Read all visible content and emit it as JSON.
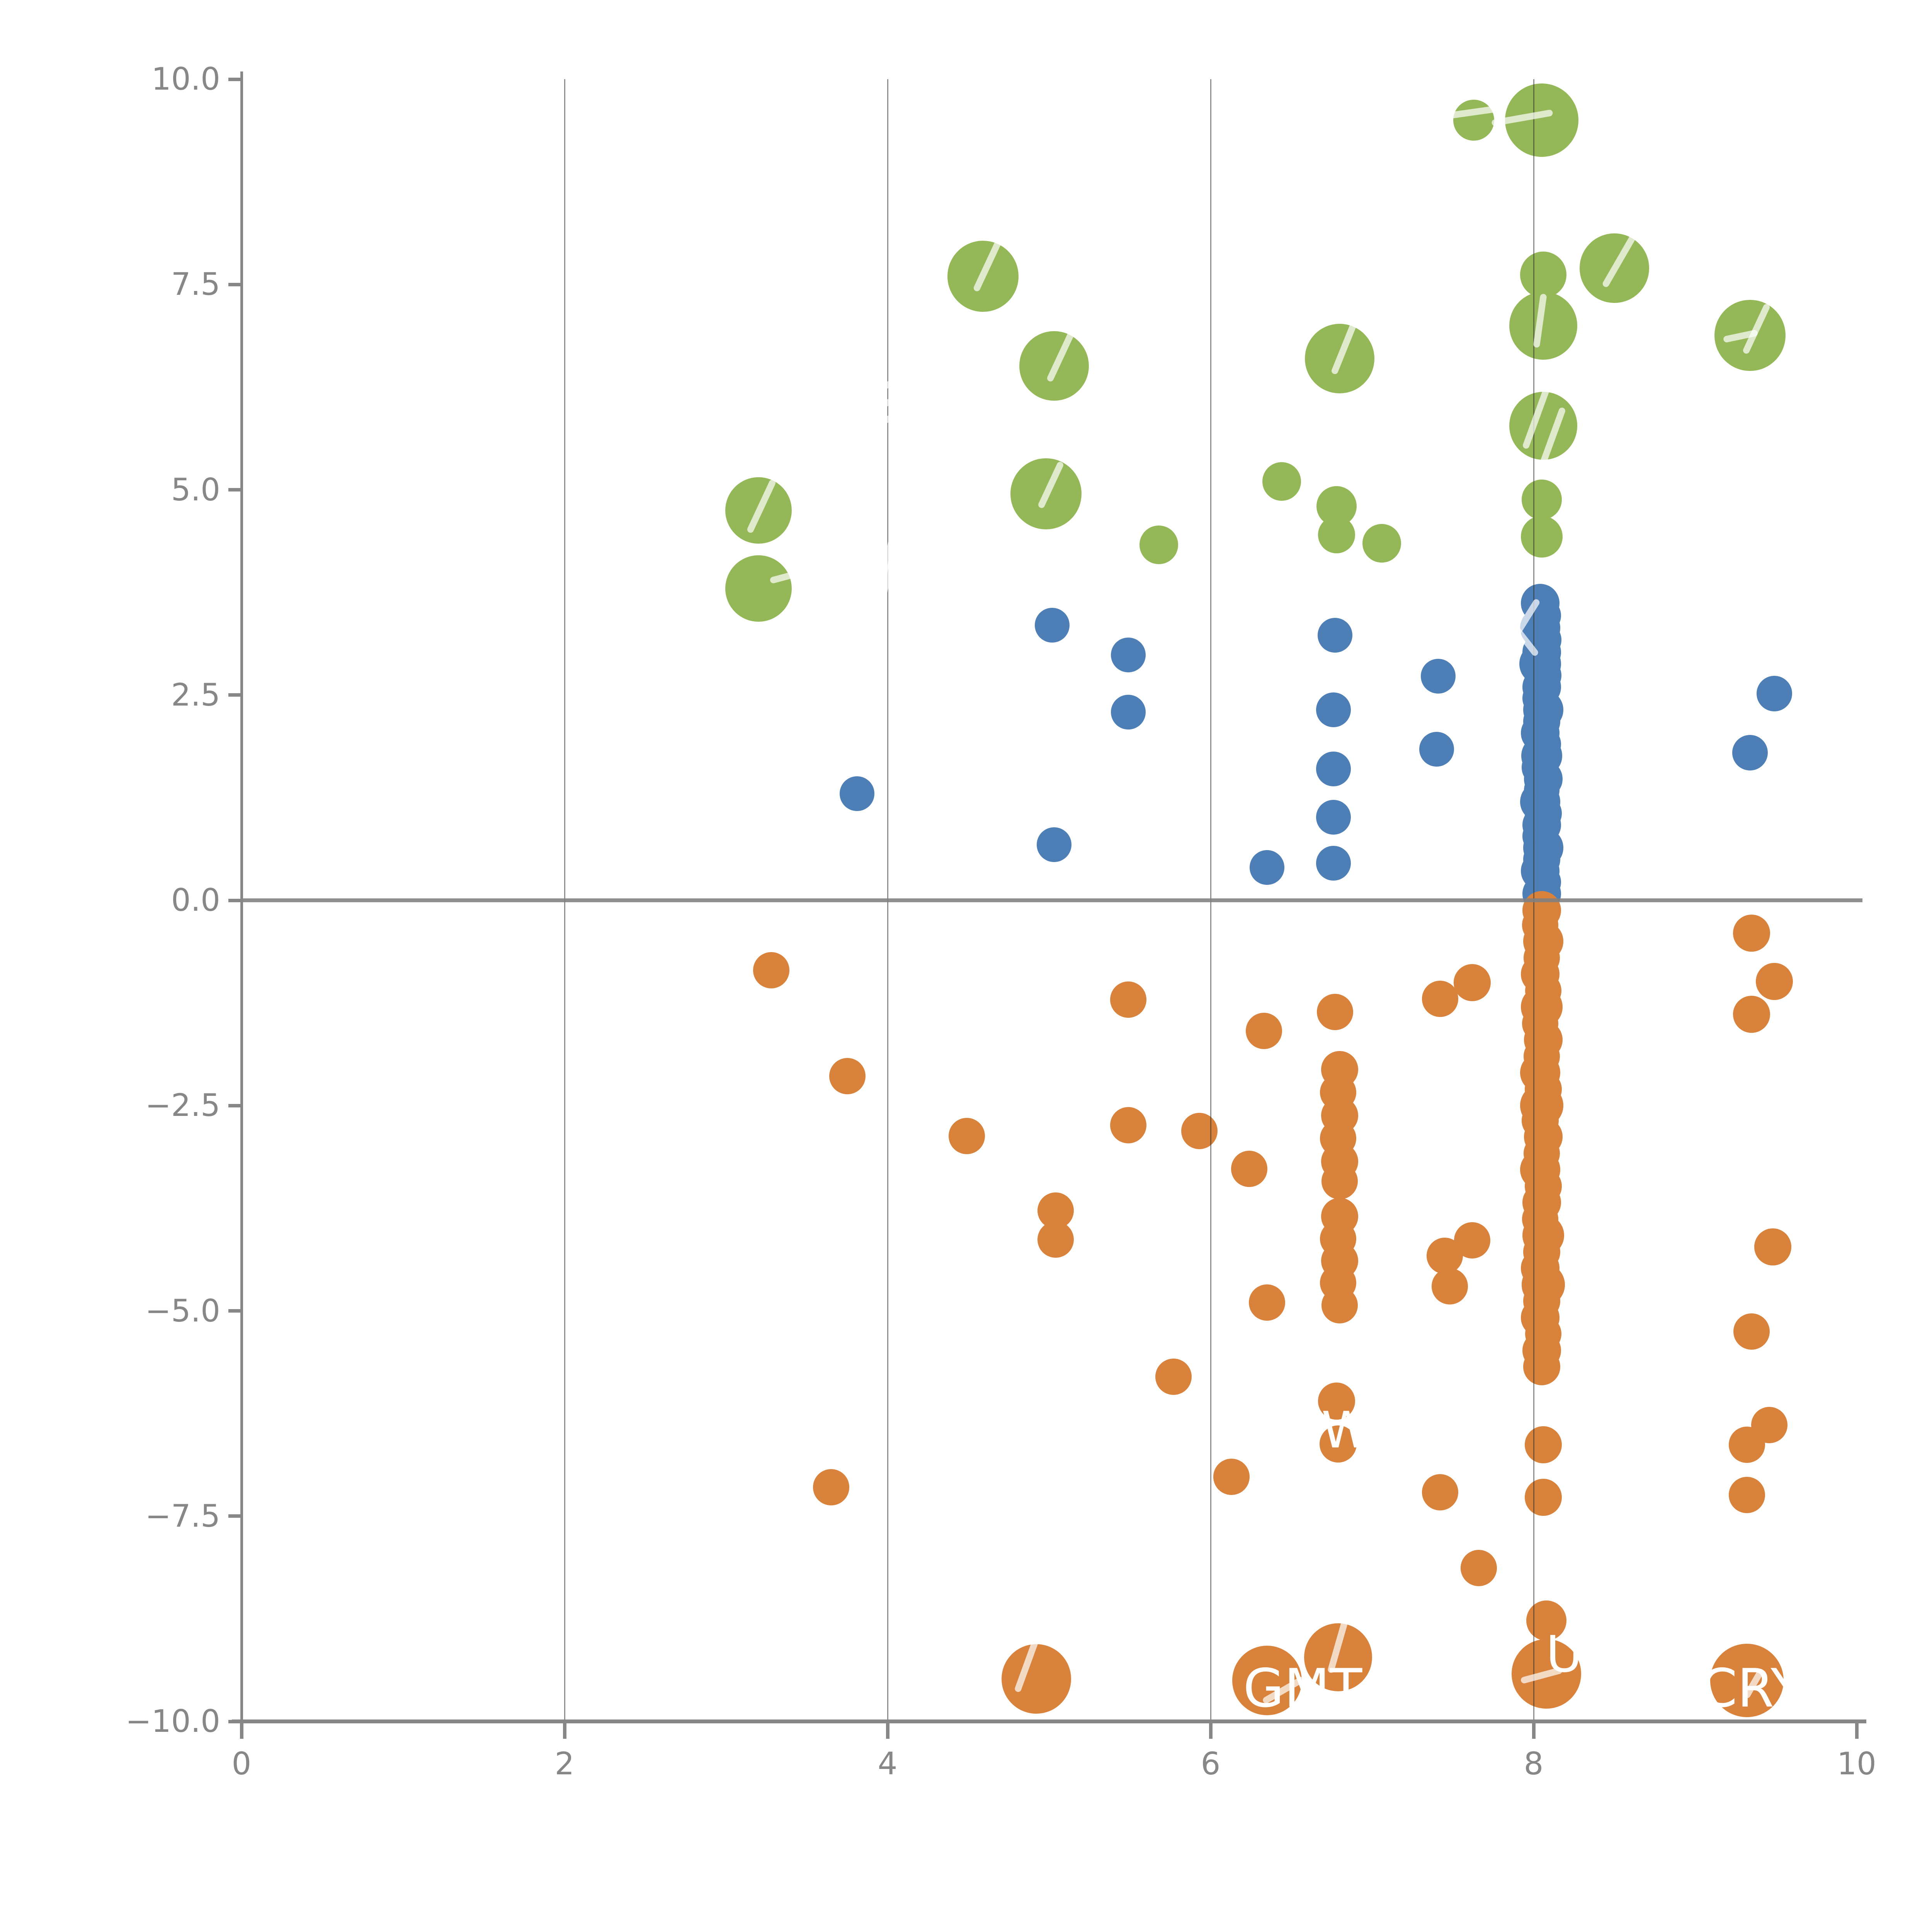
{
  "chart_data": {
    "type": "scatter",
    "title": "",
    "xlabel": "",
    "ylabel": "",
    "xlim": [
      0,
      10
    ],
    "ylim": [
      -10,
      10
    ],
    "grid": "vertical-only",
    "legend": "none",
    "x_ticks": [
      0,
      2,
      4,
      6,
      8,
      10
    ],
    "x_tick_labels": [
      "0",
      "2",
      "4",
      "6",
      "8",
      "10"
    ],
    "y_ticks": [
      10.0,
      7.5,
      5.0,
      2.5,
      0.0,
      -2.5,
      -5.0,
      -7.5,
      -10.0
    ],
    "y_tick_labels": [
      "10.0",
      "7.5",
      "5.0",
      "2.5",
      "0.0",
      "−2.5",
      "−5.0",
      "−7.5",
      "−10.0"
    ],
    "gridline_x": [
      2,
      4,
      6,
      8
    ],
    "zero_line_y": 0,
    "map": {
      "x0": 625,
      "xs": 418,
      "y0": 2330,
      "ys": 212.5,
      "plot_top": 205,
      "plot_bottom": 4450,
      "plot_left": 625,
      "plot_right": 4820
    },
    "colors": {
      "green": "#94b857",
      "blue": "#4d7eb5",
      "orange": "#d8823c",
      "axis": "#878787",
      "grid": "rgba(45,45,45,0.55)"
    },
    "series": [
      {
        "name": "green",
        "color": "#94b857",
        "points": [
          [
            3.2,
            4.75,
            86
          ],
          [
            3.2,
            3.8,
            86
          ],
          [
            4.59,
            7.6,
            92
          ],
          [
            5.03,
            6.51,
            90
          ],
          [
            4.98,
            4.95,
            92
          ],
          [
            5.68,
            4.33,
            50
          ],
          [
            6.44,
            5.1,
            50
          ],
          [
            6.8,
            6.6,
            90
          ],
          [
            6.78,
            4.8,
            52
          ],
          [
            6.78,
            4.45,
            48
          ],
          [
            7.06,
            4.35,
            50
          ],
          [
            7.63,
            9.5,
            53
          ],
          [
            8.05,
            9.5,
            95
          ],
          [
            8.06,
            7.62,
            60
          ],
          [
            8.06,
            7.0,
            88
          ],
          [
            8.5,
            7.7,
            90
          ],
          [
            8.06,
            5.78,
            88
          ],
          [
            8.05,
            4.88,
            52
          ],
          [
            8.05,
            4.43,
            54
          ],
          [
            9.34,
            6.88,
            92
          ]
        ]
      },
      {
        "name": "blue",
        "color": "#4d7eb5",
        "points": [
          [
            3.81,
            1.3,
            45
          ],
          [
            5.02,
            3.35,
            45
          ],
          [
            5.03,
            0.68,
            45
          ],
          [
            5.49,
            2.99,
            45
          ],
          [
            5.49,
            2.29,
            45
          ],
          [
            6.35,
            0.4,
            45
          ],
          [
            6.77,
            3.23,
            45
          ],
          [
            6.76,
            2.32,
            45
          ],
          [
            6.76,
            1.6,
            45
          ],
          [
            6.76,
            1.01,
            45
          ],
          [
            6.76,
            0.45,
            45
          ],
          [
            7.41,
            2.73,
            45
          ],
          [
            7.4,
            1.84,
            45
          ],
          [
            9.49,
            2.52,
            46
          ],
          [
            9.34,
            1.8,
            46
          ],
          [
            8.04,
            3.62,
            50
          ],
          [
            8.06,
            3.47,
            46
          ],
          [
            8.04,
            3.32,
            52
          ],
          [
            8.06,
            3.17,
            47
          ],
          [
            8.05,
            3.02,
            50
          ],
          [
            8.04,
            2.88,
            54
          ],
          [
            8.06,
            2.74,
            47
          ],
          [
            8.05,
            2.6,
            50
          ],
          [
            8.04,
            2.46,
            46
          ],
          [
            8.06,
            2.32,
            52
          ],
          [
            8.05,
            2.18,
            48
          ],
          [
            8.04,
            2.04,
            50
          ],
          [
            8.06,
            1.9,
            46
          ],
          [
            8.05,
            1.76,
            53
          ],
          [
            8.04,
            1.62,
            48
          ],
          [
            8.06,
            1.48,
            50
          ],
          [
            8.05,
            1.34,
            46
          ],
          [
            8.04,
            1.2,
            52
          ],
          [
            8.06,
            1.06,
            48
          ],
          [
            8.05,
            0.92,
            50
          ],
          [
            8.04,
            0.78,
            46
          ],
          [
            8.06,
            0.64,
            52
          ],
          [
            8.05,
            0.5,
            48
          ],
          [
            8.04,
            0.36,
            50
          ],
          [
            8.06,
            0.22,
            46
          ],
          [
            8.05,
            0.08,
            50
          ]
        ]
      },
      {
        "name": "orange",
        "color": "#d8823c",
        "points": [
          [
            3.28,
            -0.85,
            47
          ],
          [
            3.75,
            -2.14,
            47
          ],
          [
            3.65,
            -7.15,
            47
          ],
          [
            4.49,
            -2.87,
            47
          ],
          [
            5.04,
            -3.78,
            47
          ],
          [
            5.04,
            -4.13,
            47
          ],
          [
            5.49,
            -1.21,
            47
          ],
          [
            5.49,
            -2.74,
            47
          ],
          [
            5.93,
            -2.81,
            47
          ],
          [
            6.33,
            -1.59,
            47
          ],
          [
            6.77,
            -1.36,
            47
          ],
          [
            6.24,
            -3.27,
            47
          ],
          [
            6.35,
            -4.9,
            47
          ],
          [
            5.77,
            -5.8,
            47
          ],
          [
            6.13,
            -7.02,
            47
          ],
          [
            6.78,
            -6.1,
            48
          ],
          [
            6.79,
            -6.62,
            48
          ],
          [
            7.42,
            -7.21,
            47
          ],
          [
            7.66,
            -8.13,
            47
          ],
          [
            7.62,
            -1.0,
            48
          ],
          [
            7.42,
            -1.2,
            47
          ],
          [
            7.62,
            -4.14,
            47
          ],
          [
            7.45,
            -4.33,
            47
          ],
          [
            7.48,
            -4.7,
            47
          ],
          [
            9.35,
            -0.4,
            48
          ],
          [
            9.49,
            -0.99,
            48
          ],
          [
            9.35,
            -1.39,
            48
          ],
          [
            9.48,
            -4.22,
            48
          ],
          [
            9.35,
            -5.25,
            47
          ],
          [
            9.46,
            -6.39,
            47
          ],
          [
            9.32,
            -6.63,
            47
          ],
          [
            9.32,
            -7.24,
            47
          ],
          [
            8.06,
            -6.63,
            48
          ],
          [
            8.06,
            -7.27,
            48
          ],
          [
            8.08,
            -8.77,
            52
          ],
          [
            6.8,
            -2.06,
            48
          ],
          [
            6.79,
            -2.34,
            47
          ],
          [
            6.8,
            -2.62,
            48
          ],
          [
            6.79,
            -2.9,
            47
          ],
          [
            6.8,
            -3.18,
            48
          ],
          [
            6.8,
            -3.42,
            47
          ],
          [
            6.8,
            -3.85,
            48
          ],
          [
            6.79,
            -4.12,
            47
          ],
          [
            6.8,
            -4.39,
            48
          ],
          [
            6.79,
            -4.66,
            47
          ],
          [
            6.8,
            -4.93,
            47
          ],
          [
            8.05,
            -0.12,
            50
          ],
          [
            8.04,
            -0.3,
            47
          ],
          [
            8.06,
            -0.5,
            52
          ],
          [
            8.05,
            -0.7,
            47
          ],
          [
            8.04,
            -0.9,
            50
          ],
          [
            8.06,
            -1.1,
            47
          ],
          [
            8.05,
            -1.3,
            54
          ],
          [
            8.04,
            -1.5,
            47
          ],
          [
            8.06,
            -1.7,
            50
          ],
          [
            8.05,
            -1.9,
            47
          ],
          [
            8.04,
            -2.1,
            52
          ],
          [
            8.06,
            -2.3,
            48
          ],
          [
            8.05,
            -2.5,
            56
          ],
          [
            8.04,
            -2.68,
            48
          ],
          [
            8.06,
            -2.88,
            50
          ],
          [
            8.05,
            -3.08,
            47
          ],
          [
            8.04,
            -3.28,
            52
          ],
          [
            8.06,
            -3.48,
            48
          ],
          [
            8.05,
            -3.68,
            50
          ],
          [
            8.04,
            -3.88,
            47
          ],
          [
            8.06,
            -4.08,
            54
          ],
          [
            8.05,
            -4.28,
            48
          ],
          [
            8.04,
            -4.48,
            50
          ],
          [
            8.06,
            -4.68,
            56
          ],
          [
            8.05,
            -4.88,
            48
          ],
          [
            8.04,
            -5.08,
            50
          ],
          [
            8.06,
            -5.28,
            47
          ],
          [
            8.05,
            -5.48,
            50
          ],
          [
            8.05,
            -5.68,
            48
          ],
          [
            4.92,
            -9.48,
            90
          ],
          [
            6.35,
            -9.5,
            90
          ],
          [
            6.79,
            -9.22,
            88
          ],
          [
            8.08,
            -9.42,
            90
          ],
          [
            9.32,
            -9.5,
            95
          ]
        ]
      }
    ],
    "point_labels": [
      {
        "text": "GMT",
        "x": 6.57,
        "y": -9.6,
        "size": 137
      },
      {
        "text": "U",
        "x": 8.19,
        "y": -9.18,
        "size": 130
      },
      {
        "text": "CRY",
        "x": 9.35,
        "y": -9.6,
        "size": 137
      },
      {
        "text": "W",
        "x": 6.84,
        "y": -6.45,
        "size": 130
      }
    ],
    "white_marks": [
      [
        3.22,
        4.8,
        150,
        25
      ],
      [
        3.4,
        3.96,
        110,
        75
      ],
      [
        4.62,
        7.74,
        150,
        25
      ],
      [
        5.07,
        6.62,
        140,
        25
      ],
      [
        5.01,
        5.06,
        130,
        25
      ],
      [
        6.83,
        6.74,
        150,
        22
      ],
      [
        7.63,
        9.6,
        170,
        82
      ],
      [
        7.93,
        9.53,
        160,
        80
      ],
      [
        8.54,
        7.82,
        170,
        30
      ],
      [
        8.04,
        7.06,
        140,
        8
      ],
      [
        9.28,
        6.87,
        90,
        78
      ],
      [
        9.38,
        6.96,
        140,
        25
      ],
      [
        8.02,
        5.9,
        180,
        20
      ],
      [
        8.11,
        5.6,
        180,
        20
      ],
      [
        7.95,
        3.42,
        120,
        32
      ],
      [
        7.94,
        3.19,
        110,
        -38
      ],
      [
        4.0,
        6.28,
        80,
        68
      ],
      [
        4.0,
        6.06,
        80,
        68
      ],
      [
        4.0,
        5.86,
        80,
        68
      ],
      [
        4.0,
        4.18,
        140,
        14
      ],
      [
        4.0,
        3.94,
        100,
        14
      ],
      [
        4.88,
        -9.22,
        190,
        20
      ],
      [
        6.81,
        -8.93,
        210,
        16
      ],
      [
        8.05,
        -9.44,
        110,
        75
      ],
      [
        6.45,
        -9.62,
        120,
        60
      ],
      [
        9.36,
        -9.55,
        80,
        30
      ]
    ]
  }
}
